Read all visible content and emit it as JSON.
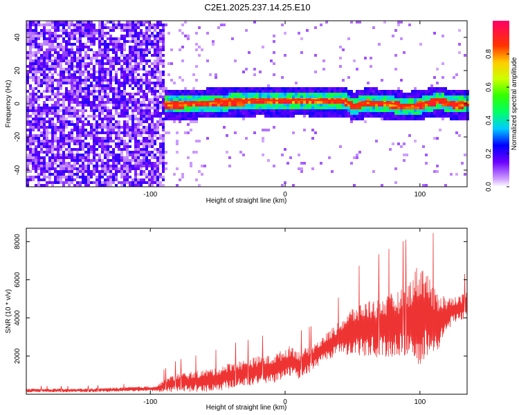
{
  "figure": {
    "title": "C2E1.2025.237.14.25.E10"
  },
  "colors": {
    "snr_line": "#ee3333",
    "frame": "#000000"
  },
  "chart_data": [
    {
      "type": "heatmap",
      "xlabel": "Height of straight line (km)",
      "ylabel": "Frequency (Hz)",
      "xlim": [
        -192,
        135
      ],
      "ylim": [
        -50,
        50
      ],
      "xticks": [
        -100,
        0,
        100
      ],
      "yticks": [
        -40,
        -20,
        0,
        20,
        40
      ],
      "grid": false,
      "colorbar": {
        "label": "Normalized spectral amplitude",
        "range": [
          0,
          1
        ],
        "ticks": [
          0.0,
          0.2,
          0.4,
          0.6,
          0.8
        ],
        "colormap": "rainbow"
      },
      "regions": [
        {
          "x": [
            -192,
            -91
          ],
          "description_value": "broadband noise",
          "mean_amplitude": 0.12
        },
        {
          "x": [
            -91,
            135
          ],
          "center_frequency": 1.5,
          "mean_amplitude": 0.85
        }
      ],
      "ridge_frequency": [
        [
          -90,
          0
        ],
        [
          -70,
          0.5
        ],
        [
          -50,
          1.5
        ],
        [
          -30,
          2
        ],
        [
          -20,
          2.5
        ],
        [
          -10,
          2
        ],
        [
          0,
          2
        ],
        [
          10,
          2.5
        ],
        [
          30,
          2
        ],
        [
          44,
          2
        ],
        [
          50,
          -1
        ],
        [
          60,
          1.5
        ],
        [
          75,
          0.5
        ],
        [
          90,
          -1
        ],
        [
          100,
          0
        ],
        [
          110,
          2
        ],
        [
          115,
          2
        ],
        [
          125,
          0
        ],
        [
          135,
          0.5
        ]
      ]
    },
    {
      "type": "line",
      "xlabel": "Height of straight line (km)",
      "ylabel": "SNR (10 * v/v)",
      "xlim": [
        -192,
        135
      ],
      "ylim": [
        0,
        8700
      ],
      "xticks": [
        -100,
        0,
        100
      ],
      "yticks": [
        2000,
        4000,
        6000,
        8000
      ],
      "grid": false,
      "series": [
        {
          "x": [
            -192,
            -150,
            -120,
            -95,
            -90,
            -80,
            -70,
            -60,
            -50,
            -40,
            -30,
            -20,
            -10,
            0,
            5,
            10,
            20,
            30,
            40,
            50,
            60,
            70,
            80,
            90,
            95,
            100,
            105,
            110,
            115,
            120,
            125,
            130,
            135
          ],
          "values": [
            200,
            200,
            250,
            300,
            450,
            600,
            650,
            700,
            800,
            1000,
            1100,
            1250,
            1300,
            1600,
            1800,
            1500,
            1900,
            2450,
            2950,
            3300,
            3450,
            3500,
            3650,
            3800,
            4100,
            4200,
            4300,
            3600,
            4000,
            4100,
            4450,
            4500,
            4700
          ],
          "spread": [
            100,
            100,
            120,
            150,
            350,
            500,
            550,
            600,
            650,
            700,
            700,
            750,
            750,
            800,
            800,
            750,
            700,
            700,
            900,
            1300,
            1500,
            1600,
            1700,
            1800,
            2400,
            2700,
            2400,
            2000,
            1400,
            1000,
            700,
            700,
            700
          ]
        }
      ]
    }
  ]
}
